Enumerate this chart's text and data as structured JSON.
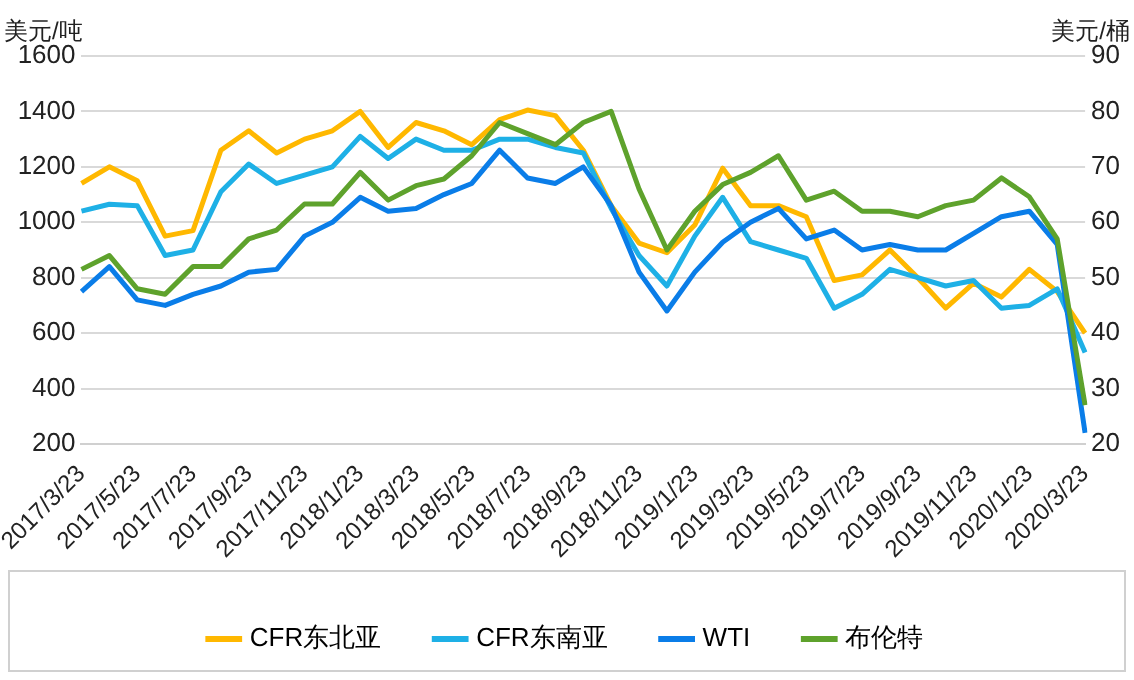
{
  "chart_data": {
    "type": "line",
    "ylabel": "美元/吨",
    "y2label": "美元/桶",
    "categories": [
      "2017/3/23",
      null,
      "2017/5/23",
      null,
      "2017/7/23",
      null,
      "2017/9/23",
      null,
      "2017/11/23",
      null,
      "2018/1/23",
      null,
      "2018/3/23",
      null,
      "2018/5/23",
      null,
      "2018/7/23",
      null,
      "2018/9/23",
      null,
      "2018/11/23",
      null,
      "2019/1/23",
      null,
      "2019/3/23",
      null,
      "2019/5/23",
      null,
      "2019/7/23",
      null,
      "2019/9/23",
      null,
      "2019/11/23",
      null,
      "2020/1/23",
      null,
      "2020/3/23"
    ],
    "series": [
      {
        "name": "CFR东北亚",
        "color": "#ffb800",
        "values": [
          1140,
          1200,
          1150,
          950,
          970,
          1260,
          1330,
          1250,
          1300,
          1330,
          1400,
          1270,
          1360,
          1330,
          1280,
          1370,
          1405,
          1385,
          1260,
          1060,
          925,
          890,
          990,
          1195,
          1060,
          1060,
          1020,
          790,
          810,
          900,
          800,
          690,
          780,
          730,
          830,
          750,
          600
        ]
      },
      {
        "name": "CFR东南亚",
        "color": "#1eb0e6",
        "values": [
          1040,
          1065,
          1060,
          880,
          900,
          1110,
          1210,
          1140,
          1170,
          1200,
          1310,
          1230,
          1300,
          1260,
          1260,
          1300,
          1300,
          1270,
          1250,
          1050,
          880,
          770,
          950,
          1090,
          930,
          900,
          870,
          690,
          740,
          830,
          800,
          770,
          790,
          690,
          700,
          760,
          530
        ]
      },
      {
        "name": "WTI",
        "color": "#0a7de8",
        "axis": "y2",
        "values": [
          47.5,
          52,
          46,
          45,
          47,
          48.5,
          51,
          51.5,
          57.5,
          60,
          64.5,
          62,
          62.5,
          65,
          67,
          73,
          68,
          67,
          70,
          63,
          51,
          44,
          51,
          56.4,
          60,
          62.5,
          57,
          58.6,
          55,
          56,
          55,
          55,
          58,
          61,
          62,
          56,
          22
        ]
      },
      {
        "name": "布伦特",
        "color": "#5ea22c",
        "axis": "y2",
        "values": [
          51.5,
          54,
          48,
          47,
          52,
          52,
          57,
          58.6,
          63.3,
          63.3,
          69,
          64,
          66.6,
          67.8,
          72,
          78,
          76,
          74,
          78,
          80,
          66,
          55,
          62,
          66.8,
          69,
          72,
          64,
          65.6,
          62,
          62,
          61,
          63,
          64,
          68,
          64.6,
          57,
          27
        ]
      }
    ],
    "ylim": [
      200,
      1600
    ],
    "yticks": [
      200,
      400,
      600,
      800,
      1000,
      1200,
      1400,
      1600
    ],
    "y2lim": [
      20,
      90
    ],
    "y2ticks": [
      20,
      30,
      40,
      50,
      60,
      70,
      80,
      90
    ],
    "grid": "y",
    "legend": "bottom",
    "marker": "none",
    "line_style": "solid"
  }
}
